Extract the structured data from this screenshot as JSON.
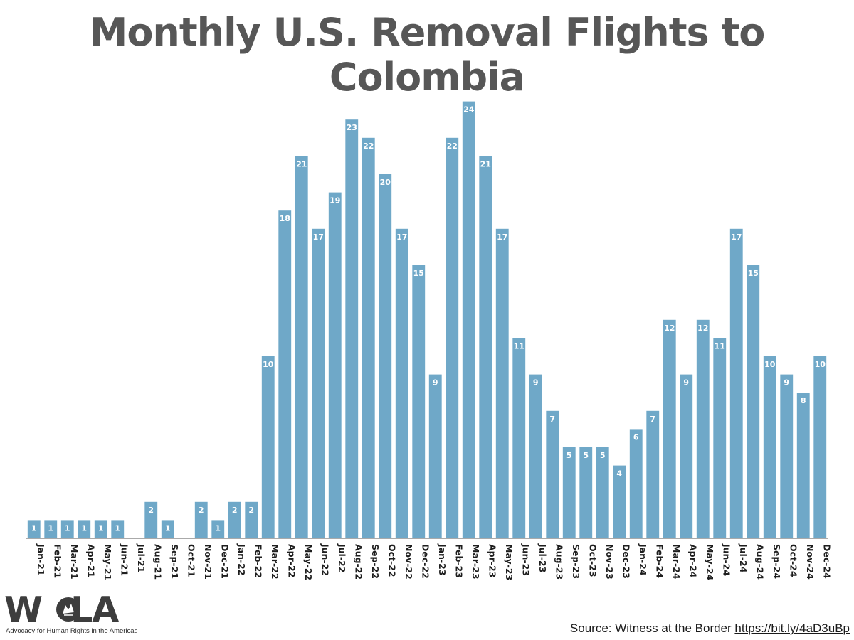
{
  "chart_data": {
    "type": "bar",
    "title": "Monthly U.S. Removal Flights to Colombia",
    "xlabel": "",
    "ylabel": "",
    "ylim": [
      0,
      25
    ],
    "grid": false,
    "bar_color": "#6fa8c8",
    "categories": [
      "Jan-21",
      "Feb-21",
      "Mar-21",
      "Apr-21",
      "May-21",
      "Jun-21",
      "Jul-21",
      "Aug-21",
      "Sep-21",
      "Oct-21",
      "Nov-21",
      "Dec-21",
      "Jan-22",
      "Feb-22",
      "Mar-22",
      "Apr-22",
      "May-22",
      "Jun-22",
      "Jul-22",
      "Aug-22",
      "Sep-22",
      "Oct-22",
      "Nov-22",
      "Dec-22",
      "Jan-23",
      "Feb-23",
      "Mar-23",
      "Apr-23",
      "May-23",
      "Jun-23",
      "Jul-23",
      "Aug-23",
      "Sep-23",
      "Oct-23",
      "Nov-23",
      "Dec-23",
      "Jan-24",
      "Feb-24",
      "Mar-24",
      "Apr-24",
      "May-24",
      "Jun-24",
      "Jul-24",
      "Aug-24",
      "Sep-24",
      "Oct-24",
      "Nov-24",
      "Dec-24"
    ],
    "values": [
      1,
      1,
      1,
      1,
      1,
      1,
      0,
      2,
      1,
      0,
      2,
      1,
      2,
      2,
      10,
      18,
      21,
      17,
      19,
      23,
      22,
      20,
      17,
      15,
      9,
      22,
      24,
      21,
      17,
      11,
      9,
      7,
      5,
      5,
      5,
      4,
      6,
      7,
      12,
      9,
      12,
      11,
      17,
      15,
      10,
      9,
      8,
      10
    ]
  },
  "logo": {
    "text_before": "W",
    "text_after": "LA",
    "tagline": "Advocacy for Human Rights in the Americas",
    "icon": "wola-bird-emblem-icon"
  },
  "source": {
    "label": "Source: Witness at the Border ",
    "url": "https://bit.ly/4aD3uBp"
  },
  "colors": {
    "title": "#575757",
    "bar": "#6fa8c8",
    "bar_label": "#ffffff",
    "axis": "#444444"
  }
}
